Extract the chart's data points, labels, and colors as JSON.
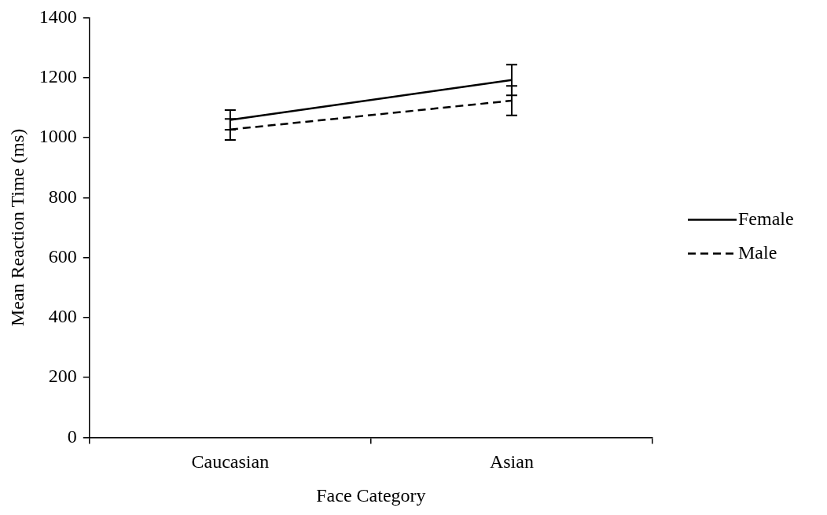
{
  "chart_data": {
    "type": "line",
    "xlabel": "Face Category",
    "ylabel": "Mean Reaction Time (ms)",
    "categories": [
      "Caucasian",
      "Asian"
    ],
    "series": [
      {
        "name": "Female",
        "color": "#000000",
        "line_style": "solid",
        "values": [
          1059,
          1192
        ],
        "errors": [
          33,
          51
        ]
      },
      {
        "name": "Male",
        "color": "#000000",
        "line_style": "dashed",
        "values": [
          1027,
          1123
        ],
        "errors": [
          35,
          49
        ]
      }
    ],
    "ylim": [
      0,
      1400
    ],
    "yticks": [
      0,
      200,
      400,
      600,
      800,
      1000,
      1200,
      1400
    ],
    "grid": false,
    "legend": "right",
    "marker": "none"
  }
}
